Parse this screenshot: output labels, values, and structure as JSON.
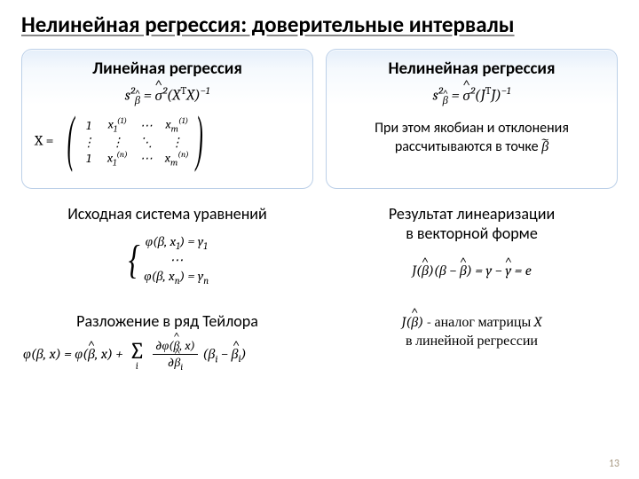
{
  "title": "Нелинейная регрессия: доверительные интервалы",
  "panel_left": {
    "title": "Линейная регрессия",
    "formula": "s²<sub><span class='hat'>β</span></sub> = <span class='hat'>σ</span>²(X<sup><span class='up'>T</span></sup>X)<sup>−1</sup>",
    "matrix_prefix": "X&nbsp;=&nbsp;"
  },
  "panel_right": {
    "title": "Нелинейная регрессия",
    "formula": "s²<sub><span class='hat'>β</span></sub> = <span class='hat'>σ</span>²(J<sup><span class='up'>T</span></sup>J)<sup>−1</sup>",
    "note_l1": "При этом якобиан и отклонения",
    "note_l2": "рассчитываются в точке&nbsp;<span style='font-family:Cambria,serif;font-style:italic'><span class='tilde'>β</span></span>"
  },
  "left_col": {
    "h1": "Исходная система уравнений",
    "sys_top": "φ(β, x<sub>1</sub>) = y<sub>1</sub>",
    "sys_mid": "⋯",
    "sys_bot": "φ(β, x<sub>n</sub>) = y<sub>n</sub>",
    "h2": "Разложение в ряд Тейлора",
    "taylor": "φ(β, x) = φ(<span class='hat'>β</span>, x) + <span class='sum'><span class='big'>∑</span><span class='idx'>i</span></span> <span class='frac'><span class='num'>∂φ(<span class='hat'>β</span>, x)</span><span class='den'>∂<span class='hat'>β</span><sub>i</sub></span></span> (β<sub>i</sub> − <span class='hat'>β<sub>i</sub></span>)"
  },
  "right_col": {
    "h1_l1": "Результат линеаризации",
    "h1_l2": "в векторной форме",
    "eq": "J(<span class='hat'>β</span>)(β − <span class='hat'>β</span>) = y − <span class='hat'>y</span> = e",
    "note": "<span style='font-style:italic'>J(<span class='hat'>β</span>)</span> - аналог матрицы <span style='font-style:italic'>X</span><br>в линейной регрессии"
  },
  "pagenum": "13",
  "colors": {
    "panel_border": "#bcd0e8",
    "panel_grad_top": "#e4eefa",
    "panel_grad_bot": "#ffffff",
    "pagenum": "#a89a84"
  }
}
